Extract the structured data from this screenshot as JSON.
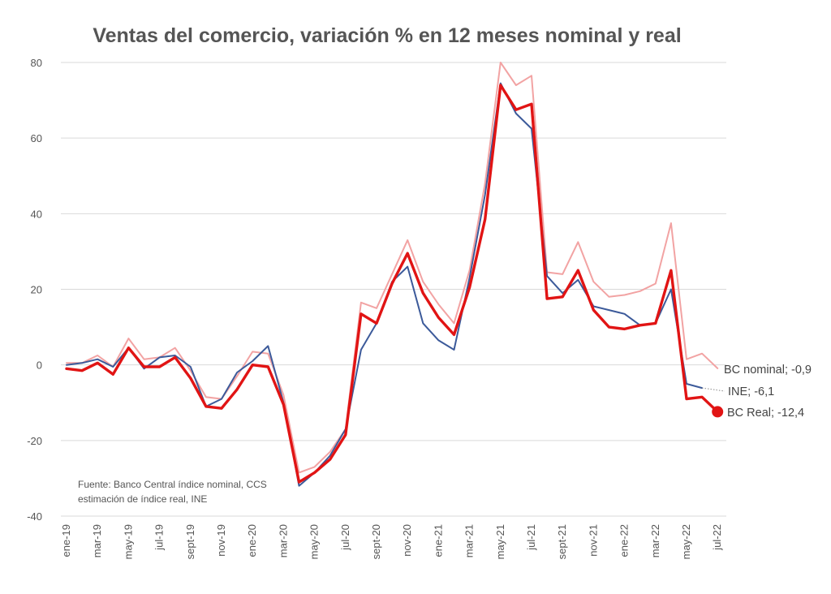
{
  "chart_data": {
    "type": "line",
    "title": "Ventas del comercio, variación % en 12 meses nominal y real",
    "xlabel": "",
    "ylabel": "",
    "ylim": [
      -40,
      80
    ],
    "yticks": [
      80,
      60,
      40,
      20,
      0,
      -20,
      -40
    ],
    "grid": true,
    "x_labels": [
      "ene-19",
      "mar-19",
      "may-19",
      "jul-19",
      "sept-19",
      "nov-19",
      "ene-20",
      "mar-20",
      "may-20",
      "jul-20",
      "sept-20",
      "nov-20",
      "ene-21",
      "mar-21",
      "may-21",
      "jul-21",
      "sept-21",
      "nov-21",
      "ene-22",
      "mar-22",
      "may-22",
      "jul-22"
    ],
    "series": [
      {
        "key": "nominal",
        "end_label": "BC nominal; -0,9",
        "color": "#f2a3a3",
        "values": [
          0.5,
          0.5,
          2.5,
          -0.5,
          7,
          1.5,
          2,
          4.5,
          -1.5,
          -8.5,
          -9,
          -3,
          3.5,
          3,
          -8,
          -28.5,
          -27,
          -23,
          -17,
          16.5,
          15,
          24,
          33,
          22,
          16,
          11,
          25,
          48,
          80,
          74,
          76.5,
          24.5,
          24,
          32.5,
          22,
          18,
          18.5,
          19.5,
          21.5,
          37.5,
          1.5,
          3,
          -0.9
        ]
      },
      {
        "key": "ine",
        "end_label": "INE; -6,1",
        "color": "#3c5a9a",
        "values": [
          0,
          0.5,
          1.5,
          -0.5,
          4.5,
          -1,
          2,
          2.5,
          -0.5,
          -11,
          -9,
          -2,
          1,
          5,
          -10,
          -32,
          -28.5,
          -24,
          -17,
          4,
          11,
          22,
          26,
          11,
          6.5,
          4,
          23,
          45,
          74.5,
          66.5,
          62.5,
          23.5,
          19,
          22.5,
          15.5,
          14.5,
          13.5,
          10.5,
          11,
          20,
          -5,
          -6.1
        ]
      },
      {
        "key": "real",
        "end_label": "BC Real; -12,4",
        "color": "#e11414",
        "values": [
          -1,
          -1.5,
          0.5,
          -2.5,
          4.5,
          -0.5,
          -0.5,
          2,
          -3.5,
          -11,
          -11.5,
          -6.5,
          0,
          -0.5,
          -10.5,
          -31,
          -28.5,
          -25,
          -18.5,
          13.5,
          11,
          21.5,
          29.5,
          19,
          12.5,
          8,
          20.5,
          38.5,
          74,
          67.5,
          69,
          17.5,
          18,
          25,
          14.5,
          10,
          9.5,
          10.5,
          11,
          25,
          -9,
          -8.5,
          -12.4
        ]
      }
    ],
    "source_note": [
      "Fuente: Banco Central índice nominal, CCS",
      "estimación de índice real, INE"
    ]
  }
}
